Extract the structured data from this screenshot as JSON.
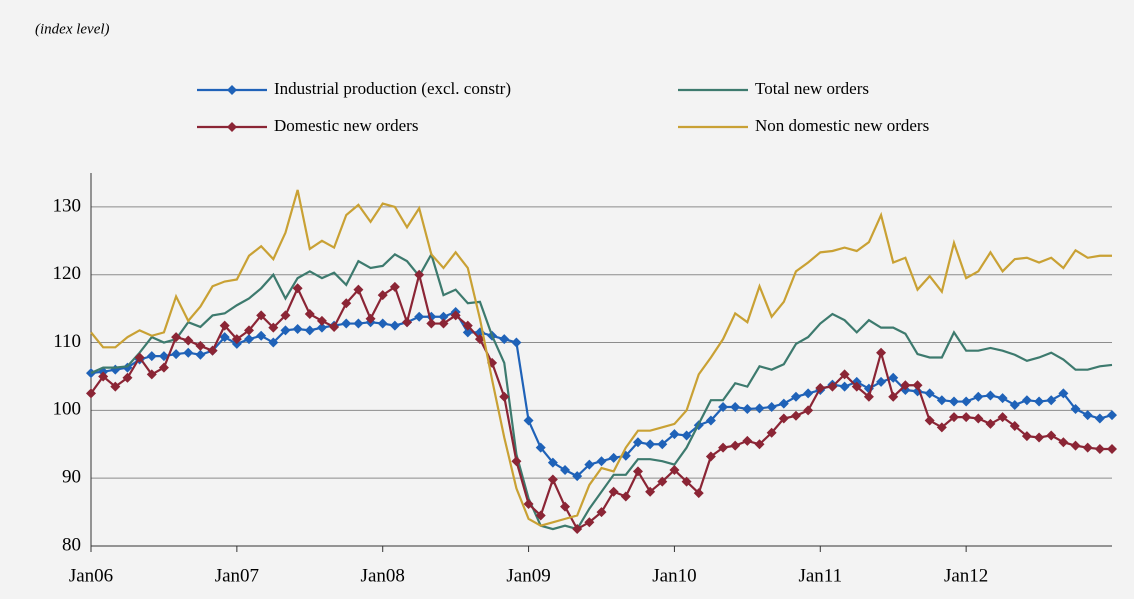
{
  "chart_data": {
    "type": "line",
    "subtitle": "(index level)",
    "categories": [
      "Jan06",
      null,
      null,
      null,
      null,
      null,
      null,
      null,
      null,
      null,
      null,
      null,
      "Jan07",
      null,
      null,
      null,
      null,
      null,
      null,
      null,
      null,
      null,
      null,
      null,
      "Jan08",
      null,
      null,
      null,
      null,
      null,
      null,
      null,
      null,
      null,
      null,
      null,
      "Jan09",
      null,
      null,
      null,
      null,
      null,
      null,
      null,
      null,
      null,
      null,
      null,
      "Jan10",
      null,
      null,
      null,
      null,
      null,
      null,
      null,
      null,
      null,
      null,
      null,
      "Jan11",
      null,
      null,
      null,
      null,
      null,
      null,
      null,
      null,
      null,
      null,
      null,
      "Jan12",
      null,
      null,
      null,
      null,
      null,
      null,
      null,
      null,
      null,
      null,
      null,
      null
    ],
    "series": [
      {
        "name": "Industrial production (excl. constr)",
        "color": "#1f62b8",
        "marker": "diamond",
        "values": [
          105.5,
          105.7,
          106.0,
          106.3,
          107.5,
          108.0,
          108.0,
          108.3,
          108.5,
          108.2,
          108.8,
          110.8,
          109.8,
          110.5,
          111.0,
          110.0,
          111.8,
          112.0,
          111.8,
          112.2,
          112.5,
          112.8,
          112.8,
          113.0,
          112.8,
          112.5,
          113.0,
          113.8,
          113.8,
          113.8,
          114.5,
          111.5,
          111.5,
          111.0,
          110.5,
          110.0,
          98.5,
          94.5,
          92.3,
          91.2,
          90.3,
          92.0,
          92.5,
          93.0,
          93.3,
          95.3,
          95.0,
          95.0,
          96.5,
          96.3,
          97.8,
          98.5,
          100.5,
          100.5,
          100.2,
          100.3,
          100.5,
          101.0,
          102.0,
          102.5,
          103.0,
          103.8,
          103.5,
          104.2,
          103.2,
          104.2,
          104.8,
          103.0,
          102.8,
          102.5,
          101.5,
          101.3,
          101.3,
          102.0,
          102.2,
          101.8,
          100.8,
          101.5,
          101.3,
          101.5,
          102.5,
          100.2,
          99.3,
          98.8,
          99.3
        ]
      },
      {
        "name": "Total new orders",
        "color": "#3d7a6e",
        "values": [
          105.5,
          106.3,
          106.3,
          106.5,
          108.5,
          110.8,
          110.0,
          110.5,
          113.0,
          112.3,
          114.0,
          114.3,
          115.5,
          116.5,
          118.0,
          120.0,
          116.5,
          119.5,
          120.5,
          119.5,
          120.3,
          118.5,
          122.0,
          121.0,
          121.3,
          123.0,
          122.0,
          119.8,
          123.0,
          117.0,
          117.8,
          115.8,
          116.0,
          111.0,
          107.0,
          93.5,
          87.0,
          83.0,
          82.5,
          83.0,
          82.5,
          85.5,
          88.0,
          90.5,
          90.5,
          92.8,
          92.8,
          92.5,
          92.0,
          94.5,
          98.0,
          101.5,
          101.5,
          104.0,
          103.5,
          106.5,
          106.0,
          106.8,
          109.8,
          110.8,
          112.8,
          114.2,
          113.3,
          111.5,
          113.3,
          112.2,
          112.2,
          111.3,
          108.3,
          107.8,
          107.8,
          111.5,
          108.8,
          108.8,
          109.2,
          108.8,
          108.2,
          107.3,
          107.8,
          108.5,
          107.5,
          106.0,
          106.0,
          106.5,
          106.7
        ]
      },
      {
        "name": "Domestic new orders",
        "color": "#8b2535",
        "marker": "diamond",
        "values": [
          102.5,
          105.0,
          103.5,
          104.8,
          107.8,
          105.3,
          106.3,
          110.8,
          110.3,
          109.5,
          108.8,
          112.5,
          110.5,
          111.8,
          114.0,
          112.2,
          114.0,
          118.0,
          114.2,
          113.2,
          112.3,
          115.8,
          117.8,
          113.5,
          117.0,
          118.2,
          113.0,
          120.0,
          112.8,
          112.8,
          114.0,
          112.5,
          110.5,
          107.0,
          102.0,
          92.5,
          86.2,
          84.5,
          89.8,
          85.8,
          82.5,
          83.5,
          85.0,
          88.0,
          87.3,
          91.0,
          88.0,
          89.5,
          91.2,
          89.5,
          87.8,
          93.2,
          94.5,
          94.8,
          95.5,
          95.0,
          96.7,
          98.8,
          99.2,
          100.0,
          103.3,
          103.5,
          105.3,
          103.5,
          102.0,
          108.5,
          102.0,
          103.7,
          103.7,
          98.5,
          97.5,
          99.0,
          99.0,
          98.8,
          98.0,
          99.0,
          97.7,
          96.2,
          96.0,
          96.3,
          95.3,
          94.8,
          94.5,
          94.3,
          94.3
        ]
      },
      {
        "name": "Non domestic new orders",
        "color": "#c9a134",
        "values": [
          111.5,
          109.3,
          109.3,
          110.8,
          111.8,
          111.0,
          111.5,
          116.8,
          113.2,
          115.3,
          118.3,
          119.0,
          119.3,
          122.8,
          124.2,
          122.3,
          126.2,
          132.5,
          123.8,
          125.0,
          124.0,
          128.8,
          130.3,
          127.8,
          130.5,
          130.0,
          127.0,
          129.8,
          123.0,
          121.0,
          123.3,
          121.0,
          113.5,
          104.5,
          96.0,
          88.5,
          84.0,
          83.0,
          83.5,
          84.0,
          84.5,
          89.0,
          91.5,
          91.0,
          94.5,
          97.0,
          97.0,
          97.5,
          98.0,
          100.0,
          105.3,
          107.8,
          110.5,
          114.3,
          113.0,
          118.3,
          113.8,
          116.0,
          120.5,
          121.8,
          123.3,
          123.5,
          124.0,
          123.5,
          124.8,
          128.8,
          121.8,
          122.5,
          117.8,
          119.8,
          117.5,
          124.7,
          119.5,
          120.5,
          123.3,
          120.5,
          122.3,
          122.5,
          121.8,
          122.5,
          121.0,
          123.6,
          122.5,
          122.8,
          122.8
        ]
      }
    ],
    "ylim": [
      80,
      135
    ],
    "yticks": [
      80,
      90,
      100,
      110,
      120,
      130
    ],
    "grid": true,
    "legend": "top"
  }
}
